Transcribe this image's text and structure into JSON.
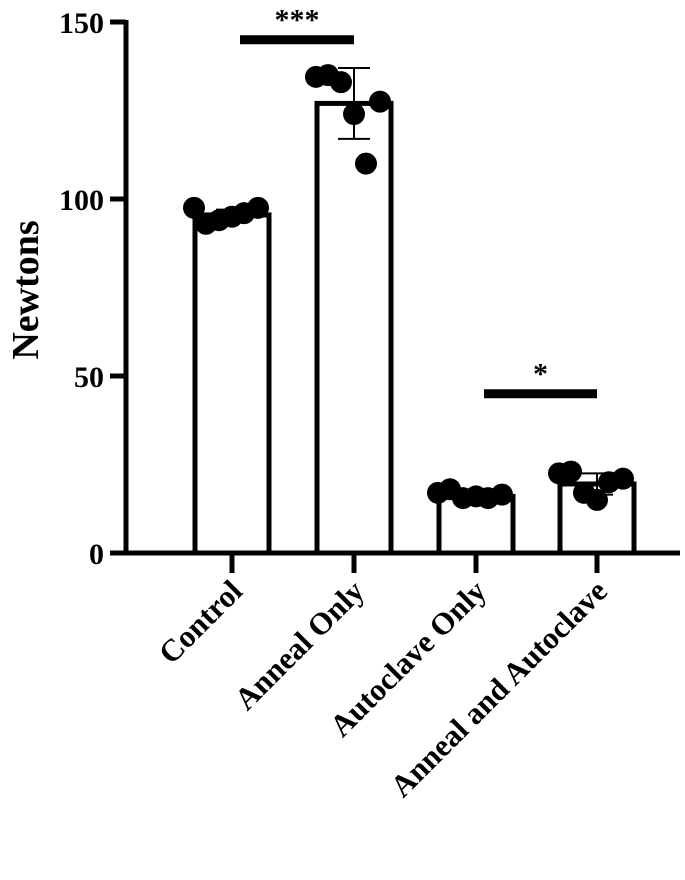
{
  "chart_data": {
    "type": "bar",
    "ylabel": "Newtons",
    "xlabel": "",
    "ylim": [
      0,
      150
    ],
    "yticks": [
      0,
      50,
      100,
      150
    ],
    "categories": [
      "Control",
      "Anneal Only",
      "Autoclave Only",
      "Anneal and Autoclave"
    ],
    "values": [
      95.5,
      127,
      16,
      19.5
    ],
    "error_sd": [
      1.5,
      10,
      1,
      3
    ],
    "points": [
      [
        97.5,
        93,
        94,
        95,
        96,
        97.5
      ],
      [
        134.5,
        135,
        133,
        124,
        110,
        127.5
      ],
      [
        17,
        18,
        15.5,
        16,
        15.5,
        16.5
      ],
      [
        22.5,
        23,
        17,
        15,
        20,
        21
      ]
    ],
    "significance": [
      {
        "groups": [
          0,
          1
        ],
        "label": "***",
        "y": 145
      },
      {
        "groups": [
          2,
          3
        ],
        "label": "*",
        "y": 45
      }
    ],
    "colors": {
      "bar_fill": "#ffffff",
      "stroke": "#000000",
      "point": "#000000"
    },
    "grid": false,
    "legend": "none"
  }
}
